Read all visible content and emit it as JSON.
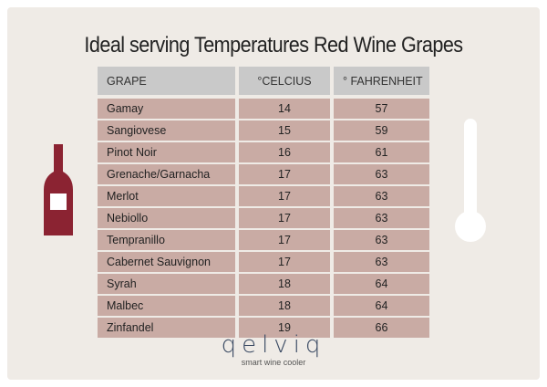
{
  "header": {
    "title": "Ideal serving Temperatures Red Wine Grapes"
  },
  "table": {
    "headers": [
      "GRAPE",
      "°CELCIUS",
      "° FAHRENHEIT"
    ],
    "rows": [
      [
        "Gamay",
        14,
        57
      ],
      [
        "Sangiovese",
        15,
        59
      ],
      [
        "Pinot Noir",
        16,
        61
      ],
      [
        "Grenache/Garnacha",
        17,
        63
      ],
      [
        "Merlot",
        17,
        63
      ],
      [
        "Nebiollo",
        17,
        63
      ],
      [
        "Tempranillo",
        17,
        63
      ],
      [
        "Cabernet Sauvignon",
        17,
        63
      ],
      [
        "Syrah",
        18,
        64
      ],
      [
        "Malbec",
        18,
        64
      ],
      [
        "Zinfandel",
        19,
        66
      ]
    ]
  },
  "logo": {
    "name": "qelviq",
    "tagline": "smart wine cooler"
  }
}
